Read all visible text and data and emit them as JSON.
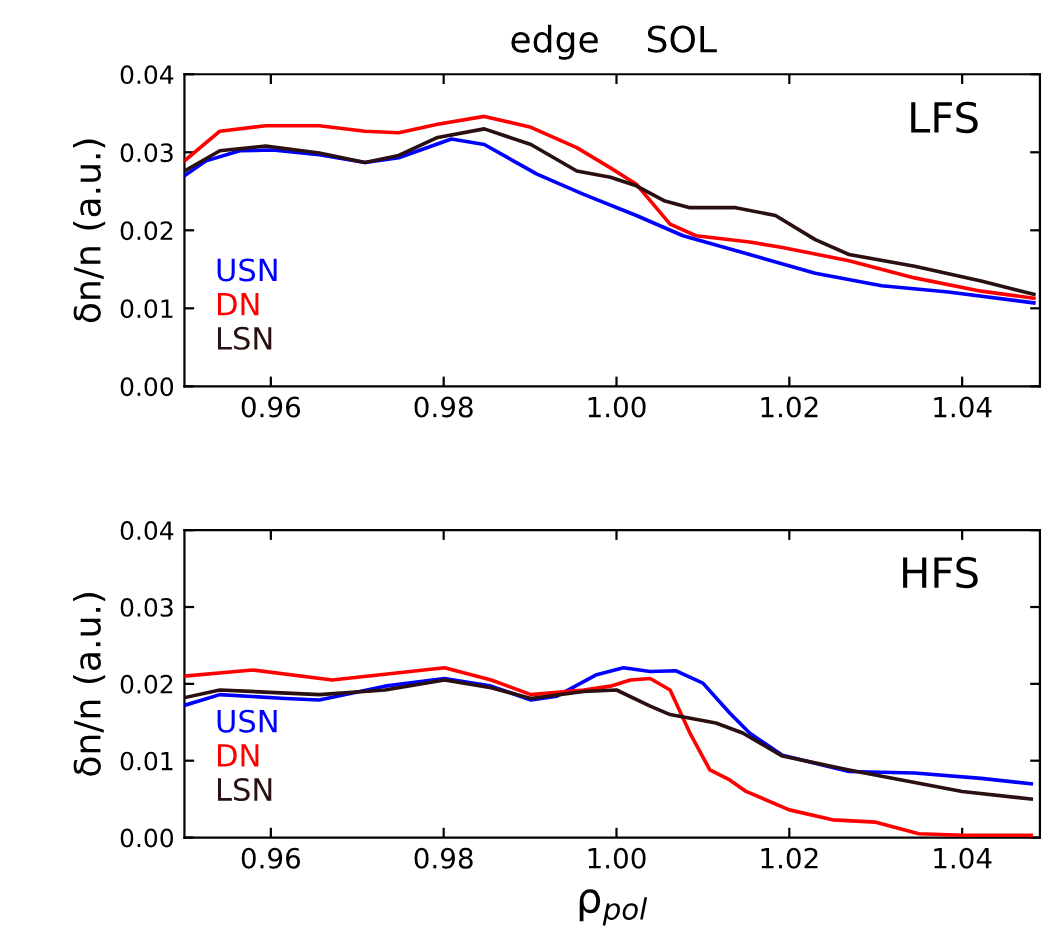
{
  "chart_data": [
    {
      "type": "line",
      "title": "edge    SOL",
      "ylabel": "δn/n (a.u.)",
      "annotations": [
        "LFS"
      ],
      "xlim": [
        0.95,
        1.049
      ],
      "xticks": [
        0.96,
        0.98,
        {
          "value": 1.0,
          "label": "1.00"
        },
        1.02,
        1.04
      ],
      "ylim": [
        0.0,
        0.04
      ],
      "yticks": [
        {
          "value": 0.0,
          "label": "0.00"
        },
        {
          "value": 0.01,
          "label": "0.01"
        },
        {
          "value": 0.02,
          "label": "0.02"
        },
        {
          "value": 0.03,
          "label": "0.03"
        },
        {
          "value": 0.04,
          "label": "0.04"
        }
      ],
      "legend": "bottom left",
      "grid": false,
      "series": [
        {
          "name": "USN",
          "color": "#0000ff",
          "x": [
            0.95,
            0.9525,
            0.9564,
            0.9602,
            0.9656,
            0.9709,
            0.9748,
            0.9809,
            0.9847,
            0.9908,
            0.9962,
            1.0023,
            1.0077,
            1.0154,
            1.023,
            1.0307,
            1.0384,
            1.0483
          ],
          "values": [
            0.027,
            0.0289,
            0.0302,
            0.0303,
            0.0297,
            0.0287,
            0.0293,
            0.0317,
            0.031,
            0.0272,
            0.0246,
            0.0219,
            0.0193,
            0.0169,
            0.0145,
            0.0129,
            0.0121,
            0.0107
          ]
        },
        {
          "name": "DN",
          "color": "#ff0000",
          "x": [
            0.95,
            0.9541,
            0.9594,
            0.9656,
            0.9709,
            0.9748,
            0.9793,
            0.9847,
            0.9901,
            0.9954,
            0.9993,
            1.0023,
            1.0039,
            1.0062,
            1.0092,
            1.0154,
            1.0192,
            1.0269,
            1.0345,
            1.0422,
            1.0483
          ],
          "values": [
            0.0289,
            0.0327,
            0.0334,
            0.0334,
            0.0327,
            0.0325,
            0.0336,
            0.0346,
            0.0332,
            0.0306,
            0.028,
            0.0259,
            0.0238,
            0.0208,
            0.0193,
            0.0185,
            0.0178,
            0.0161,
            0.0139,
            0.0122,
            0.0113
          ]
        },
        {
          "name": "LSN",
          "color": "#2a1010",
          "x": [
            0.95,
            0.9541,
            0.9594,
            0.9656,
            0.9709,
            0.9748,
            0.9793,
            0.9847,
            0.9901,
            0.9954,
            0.9993,
            1.0023,
            1.0055,
            1.0085,
            1.0138,
            1.0184,
            1.023,
            1.0269,
            1.0345,
            1.0422,
            1.0483
          ],
          "values": [
            0.0276,
            0.0302,
            0.0308,
            0.0299,
            0.0287,
            0.0296,
            0.0319,
            0.033,
            0.031,
            0.0276,
            0.0268,
            0.0257,
            0.0238,
            0.0229,
            0.0229,
            0.0219,
            0.0188,
            0.0169,
            0.0154,
            0.0135,
            0.0118
          ]
        }
      ]
    },
    {
      "type": "line",
      "xlabel": "ρ$_{pol}$",
      "ylabel": "δn/n (a.u.)",
      "annotations": [
        "HFS"
      ],
      "xlim": [
        0.95,
        1.049
      ],
      "xticks": [
        0.96,
        0.98,
        {
          "value": 1.0,
          "label": "1.00"
        },
        1.02,
        1.04
      ],
      "ylim": [
        0.0,
        0.04
      ],
      "yticks": [
        {
          "value": 0.0,
          "label": "0.00"
        },
        {
          "value": 0.01,
          "label": "0.01"
        },
        {
          "value": 0.02,
          "label": "0.02"
        },
        {
          "value": 0.03,
          "label": "0.03"
        },
        {
          "value": 0.04,
          "label": "0.04"
        }
      ],
      "legend": "bottom left",
      "grid": false,
      "series": [
        {
          "name": "USN",
          "color": "#0000ff",
          "x": [
            0.95,
            0.9541,
            0.9617,
            0.9656,
            0.9732,
            0.9801,
            0.9855,
            0.9901,
            0.9931,
            0.9977,
            1.0008,
            1.0039,
            1.0069,
            1.01,
            1.0131,
            1.0154,
            1.0192,
            1.0269,
            1.0345,
            1.0422,
            1.048
          ],
          "values": [
            0.0172,
            0.0186,
            0.0181,
            0.0179,
            0.0197,
            0.0207,
            0.0197,
            0.0179,
            0.0184,
            0.0212,
            0.0221,
            0.0216,
            0.0217,
            0.0201,
            0.0162,
            0.0136,
            0.0107,
            0.0086,
            0.0084,
            0.0077,
            0.007
          ]
        },
        {
          "name": "DN",
          "color": "#ff0000",
          "x": [
            0.95,
            0.9579,
            0.9671,
            0.9801,
            0.9855,
            0.9901,
            0.9962,
            0.9993,
            1.0016,
            1.0039,
            1.0062,
            1.0085,
            1.0108,
            1.0131,
            1.015,
            1.02,
            1.025,
            1.03,
            1.035,
            1.04,
            1.048
          ],
          "values": [
            0.021,
            0.0218,
            0.0205,
            0.0221,
            0.0205,
            0.0186,
            0.0192,
            0.0197,
            0.0205,
            0.0207,
            0.0192,
            0.0136,
            0.0088,
            0.0075,
            0.006,
            0.0036,
            0.0023,
            0.002,
            0.0005,
            0.0003,
            0.0003
          ]
        },
        {
          "name": "LSN",
          "color": "#2a1010",
          "x": [
            0.95,
            0.9541,
            0.9656,
            0.9732,
            0.9801,
            0.9855,
            0.9901,
            0.9962,
            1.0,
            1.0039,
            1.0062,
            1.0115,
            1.0146,
            1.0192,
            1.0269,
            1.04,
            1.048
          ],
          "values": [
            0.0182,
            0.0192,
            0.0186,
            0.0192,
            0.0205,
            0.0195,
            0.0181,
            0.019,
            0.0192,
            0.0171,
            0.016,
            0.0149,
            0.0136,
            0.0106,
            0.0088,
            0.006,
            0.005
          ]
        }
      ]
    }
  ]
}
